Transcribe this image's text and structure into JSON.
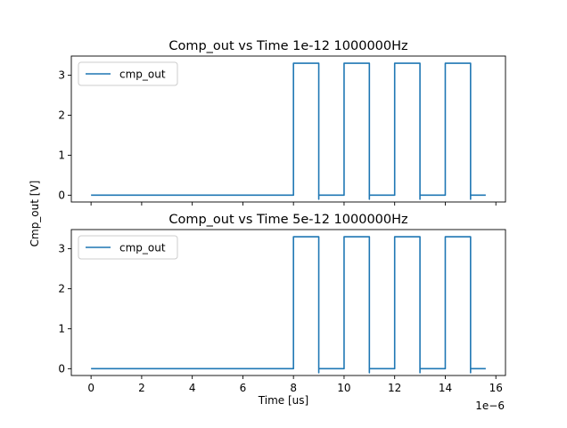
{
  "figure": {
    "shared_ylabel": "Cmp_out [V]",
    "shared_xlabel": "Time [us]",
    "x_offset_text": "1e−6"
  },
  "colors": {
    "series": "#1f77b4",
    "axis": "#000000",
    "legend_border": "#cccccc"
  },
  "chart_data": [
    {
      "type": "line",
      "title": "Comp_out vs Time 1e-12 1000000Hz",
      "xlabel": "",
      "ylabel": "",
      "xlim": [
        -7.8e-07,
        1.638e-05
      ],
      "ylim": [
        -0.17,
        3.48
      ],
      "x_ticks": [
        0,
        2e-06,
        4e-06,
        6e-06,
        8e-06,
        1e-05,
        1.2e-05,
        1.4e-05,
        1.6e-05
      ],
      "x_tick_labels_shown": false,
      "y_ticks": [
        0,
        1,
        2,
        3
      ],
      "y_tick_labels": [
        "0",
        "1",
        "2",
        "3"
      ],
      "grid": false,
      "legend": {
        "placement": "upper left",
        "entries": [
          "cmp_out"
        ]
      },
      "series": [
        {
          "name": "cmp_out",
          "x": [
            0,
            8e-06,
            8e-06,
            9e-06,
            9e-06,
            9e-06,
            1e-05,
            1e-05,
            1.1e-05,
            1.1e-05,
            1.1e-05,
            1.2e-05,
            1.2e-05,
            1.3e-05,
            1.3e-05,
            1.3e-05,
            1.4e-05,
            1.4e-05,
            1.5e-05,
            1.5e-05,
            1.5e-05,
            1.56e-05
          ],
          "y": [
            0,
            0,
            3.3,
            3.3,
            -0.1,
            0,
            0,
            3.3,
            3.3,
            -0.1,
            0,
            0,
            3.3,
            3.3,
            -0.1,
            0,
            0,
            3.3,
            3.3,
            -0.1,
            0,
            0
          ]
        }
      ]
    },
    {
      "type": "line",
      "title": "Comp_out vs Time 5e-12 1000000Hz",
      "xlabel": "Time [us]",
      "ylabel": "",
      "xlim": [
        -7.8e-07,
        1.638e-05
      ],
      "ylim": [
        -0.17,
        3.48
      ],
      "x_ticks": [
        0,
        2e-06,
        4e-06,
        6e-06,
        8e-06,
        1e-05,
        1.2e-05,
        1.4e-05,
        1.6e-05
      ],
      "x_tick_labels": [
        "0",
        "2",
        "4",
        "6",
        "8",
        "10",
        "12",
        "14",
        "16"
      ],
      "x_tick_labels_shown": true,
      "y_ticks": [
        0,
        1,
        2,
        3
      ],
      "y_tick_labels": [
        "0",
        "1",
        "2",
        "3"
      ],
      "grid": false,
      "legend": {
        "placement": "upper left",
        "entries": [
          "cmp_out"
        ]
      },
      "series": [
        {
          "name": "cmp_out",
          "x": [
            0,
            8e-06,
            8e-06,
            9e-06,
            9e-06,
            9e-06,
            1e-05,
            1e-05,
            1.1e-05,
            1.1e-05,
            1.1e-05,
            1.2e-05,
            1.2e-05,
            1.3e-05,
            1.3e-05,
            1.3e-05,
            1.4e-05,
            1.4e-05,
            1.5e-05,
            1.5e-05,
            1.5e-05,
            1.56e-05
          ],
          "y": [
            0,
            0,
            3.3,
            3.3,
            -0.1,
            0,
            0,
            3.3,
            3.3,
            -0.1,
            0,
            0,
            3.3,
            3.3,
            -0.1,
            0,
            0,
            3.3,
            3.3,
            -0.1,
            0,
            0
          ]
        }
      ]
    }
  ]
}
